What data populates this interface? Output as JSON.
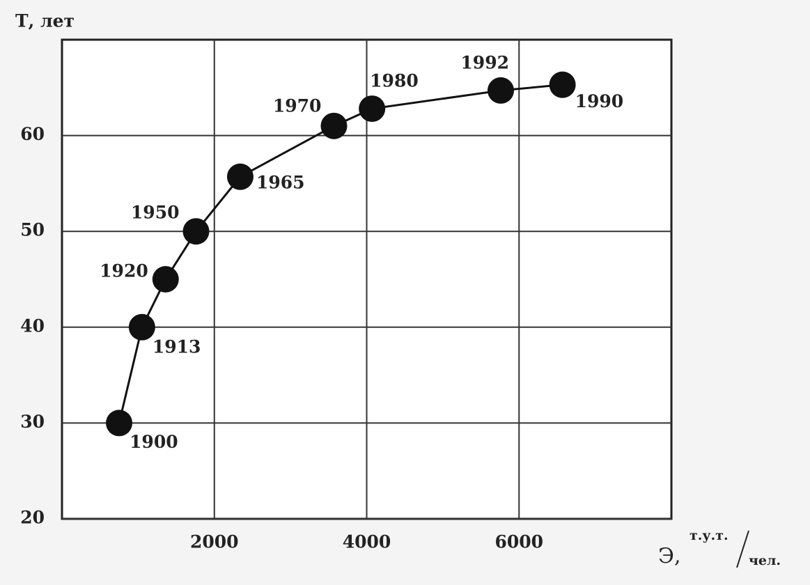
{
  "chart_data": {
    "type": "line",
    "ylabel": "Т, лет",
    "xlabel": "Э,",
    "xunit": [
      "т.у.т.",
      "чел."
    ],
    "x": [
      750,
      1050,
      1360,
      1760,
      2340,
      3570,
      4070,
      5760,
      6570
    ],
    "values": [
      30,
      40,
      45,
      50,
      55.7,
      61,
      62.8,
      64.7,
      65.3
    ],
    "point_labels": [
      "1900",
      "1913",
      "1920",
      "1950",
      "1965",
      "1970",
      "1980",
      "1992",
      "1990"
    ],
    "color": "#111111",
    "xlim": [
      0,
      8000
    ],
    "xticks": [
      2000,
      4000,
      6000
    ],
    "ylim": [
      20,
      70
    ],
    "yticks": [
      20,
      30,
      40,
      50,
      60
    ],
    "grid": true
  }
}
